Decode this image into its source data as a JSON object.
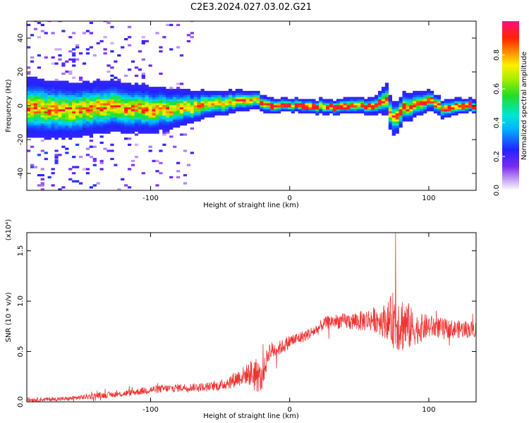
{
  "title": "C2E3.2024.027.03.02.G21",
  "colorbar": {
    "label": "Normalized spectral amplitude",
    "ticks": [
      0.0,
      0.2,
      0.4,
      0.6,
      0.8
    ],
    "tick_labels": [
      "0.0",
      "0.2",
      "0.4",
      "0.6",
      "0.8"
    ],
    "range": [
      0,
      1
    ]
  },
  "chart_data": [
    {
      "type": "heatmap",
      "xlabel": "Height of straight line (km)",
      "ylabel": "Frequency (Hz)",
      "xlim": [
        -189,
        134
      ],
      "ylim": [
        -50,
        50
      ],
      "xticks": [
        -100,
        0,
        100
      ],
      "xtick_labels": [
        "-100",
        "0",
        "100"
      ],
      "yticks": [
        -40,
        -20,
        0,
        20,
        40
      ],
      "ytick_labels": [
        "-40",
        "-20",
        "0",
        "20",
        "40"
      ],
      "center_frequency_trace": {
        "x": [
          -189,
          -160,
          -130,
          -100,
          -80,
          -60,
          -40,
          -32,
          -25,
          -20,
          0,
          20,
          40,
          60,
          65,
          68,
          70,
          72,
          75,
          80,
          90,
          100,
          105,
          110,
          120,
          134
        ],
        "y": [
          -2,
          -3,
          -1,
          -3,
          -2,
          0,
          2,
          3,
          3,
          0,
          0,
          -1,
          -1,
          0,
          1,
          6,
          -2,
          -8,
          -8,
          -2,
          0,
          3,
          0,
          -3,
          0,
          -1
        ]
      },
      "spectral_width_hz": {
        "x": [
          -189,
          -100,
          -60,
          -20,
          0,
          60,
          70,
          75,
          100,
          134
        ],
        "y": [
          18,
          14,
          8,
          5,
          4,
          5,
          10,
          10,
          6,
          4
        ]
      }
    },
    {
      "type": "line",
      "xlabel": "Height of straight line (km)",
      "ylabel": "SNR (10 * v/v)",
      "yscale_label": "(x10⁴)",
      "xlim": [
        -189,
        134
      ],
      "ylim": [
        0,
        1.68
      ],
      "xticks": [
        -100,
        0,
        100
      ],
      "xtick_labels": [
        "-100",
        "0",
        "100"
      ],
      "yticks": [
        0.0,
        0.5,
        1.0,
        1.5
      ],
      "ytick_labels": [
        "0.0",
        "0.5",
        "1.0",
        "1.5"
      ],
      "series": [
        {
          "color": "#ee3333",
          "envelope": {
            "x": [
              -189,
              -160,
              -140,
              -120,
              -100,
              -80,
              -60,
              -50,
              -40,
              -30,
              -25,
              -20,
              -15,
              -10,
              -5,
              0,
              10,
              20,
              25,
              30,
              40,
              50,
              60,
              70,
              75,
              80,
              85,
              90,
              100,
              110,
              120,
              134
            ],
            "mean": [
              0.02,
              0.03,
              0.06,
              0.08,
              0.12,
              0.14,
              0.15,
              0.16,
              0.22,
              0.28,
              0.28,
              0.22,
              0.5,
              0.52,
              0.55,
              0.6,
              0.65,
              0.72,
              0.78,
              0.8,
              0.8,
              0.8,
              0.82,
              0.8,
              0.82,
              0.78,
              0.75,
              0.72,
              0.75,
              0.73,
              0.72,
              0.72
            ],
            "spread": [
              0.02,
              0.02,
              0.03,
              0.03,
              0.04,
              0.04,
              0.04,
              0.05,
              0.08,
              0.1,
              0.2,
              0.12,
              0.1,
              0.08,
              0.07,
              0.07,
              0.06,
              0.06,
              0.06,
              0.07,
              0.08,
              0.1,
              0.12,
              0.18,
              0.3,
              0.3,
              0.25,
              0.16,
              0.12,
              0.1,
              0.09,
              0.08
            ]
          },
          "peak": {
            "x": 76,
            "y": 1.68
          }
        }
      ]
    }
  ]
}
